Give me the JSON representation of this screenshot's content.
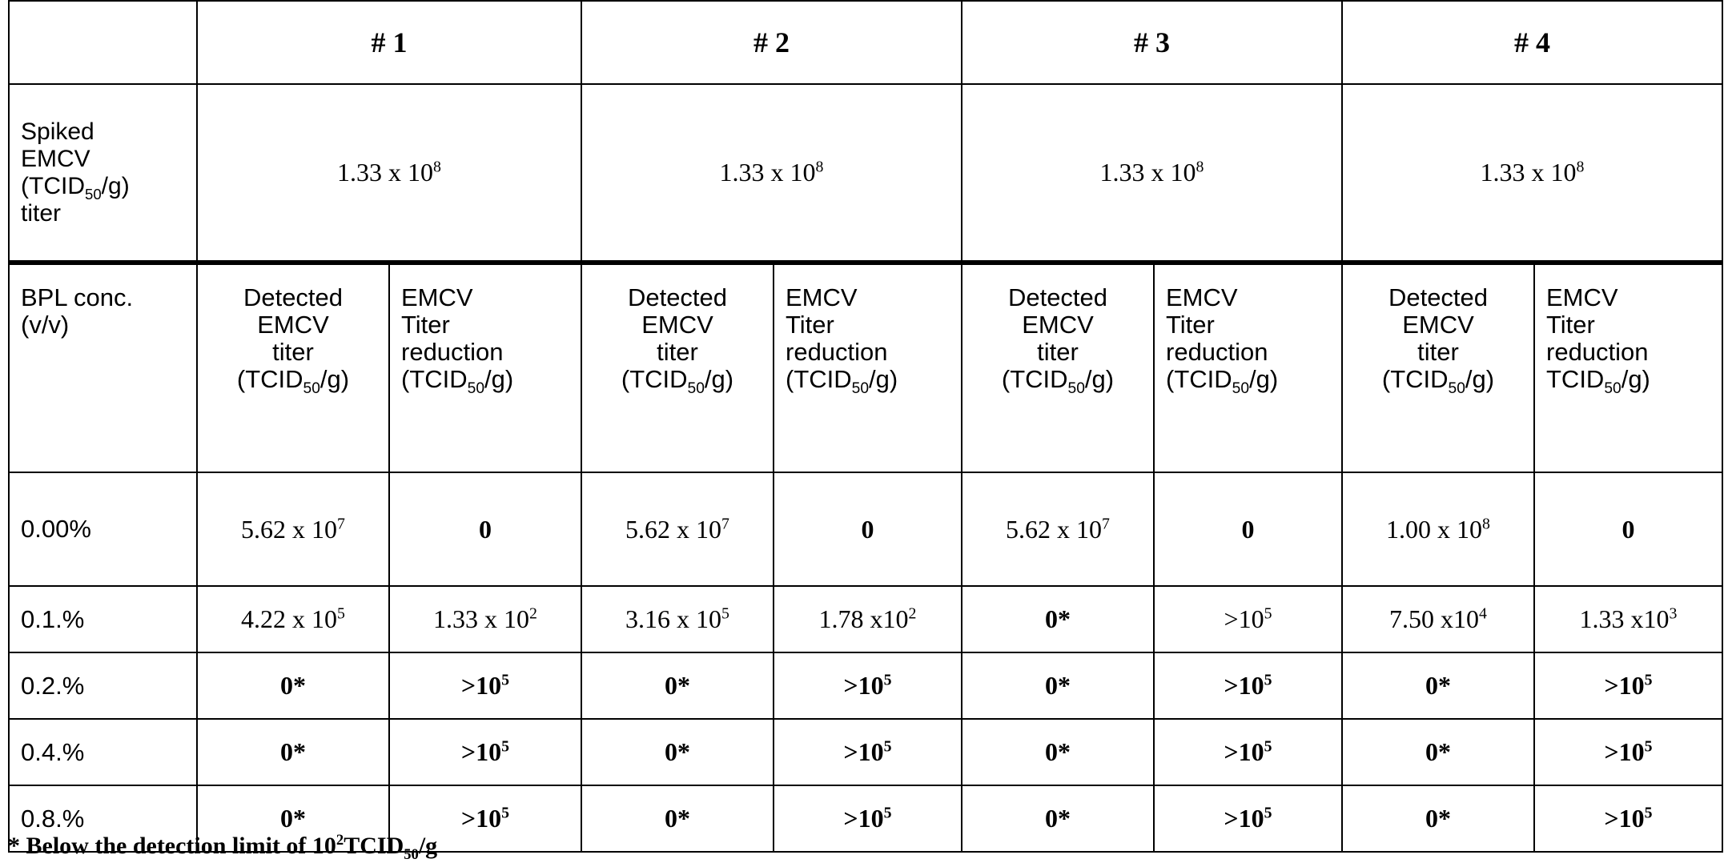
{
  "groups": [
    "# 1",
    "# 2",
    "# 3",
    "# 4"
  ],
  "spiked": {
    "label_lines": [
      "Spiked",
      "EMCV",
      "(TCID",
      "50",
      "/g)",
      "titer"
    ],
    "values": [
      {
        "base": "1.33 x 10",
        "exp": "8"
      },
      {
        "base": "1.33 x 10",
        "exp": "8"
      },
      {
        "base": "1.33 x 10",
        "exp": "8"
      },
      {
        "base": "1.33 x 10",
        "exp": "8"
      }
    ]
  },
  "bpl_header": {
    "label_line1": "BPL conc.",
    "label_line2": "(v/v)",
    "detected": {
      "l1": "Detected",
      "l2": "EMCV",
      "l3": "titer",
      "unit_a": "(TCID",
      "unit_sub": "50",
      "unit_b": "/g)"
    },
    "reduction": {
      "l1": "EMCV",
      "l2": "Titer",
      "l3": "reduction",
      "unit_a": "(TCID",
      "unit_sub": "50",
      "unit_b": "/g)"
    },
    "reduction_last": {
      "unit_a": "TCID",
      "unit_sub": "50",
      "unit_b": "/g)"
    }
  },
  "rows": [
    {
      "conc": "0.00%",
      "cells": [
        {
          "b": "5.62 x 10",
          "e": "7"
        },
        {
          "b": "0",
          "e": ""
        },
        {
          "b": "5.62 x 10",
          "e": "7"
        },
        {
          "b": "0",
          "e": ""
        },
        {
          "b": "5.62 x 10",
          "e": "7"
        },
        {
          "b": "0",
          "e": ""
        },
        {
          "b": "1.00 x 10",
          "e": "8"
        },
        {
          "b": "0",
          "e": ""
        }
      ]
    },
    {
      "conc": "0.1.%",
      "cells": [
        {
          "b": "4.22 x 10",
          "e": "5"
        },
        {
          "b": "1.33 x 10",
          "e": "2"
        },
        {
          "b": "3.16 x 10",
          "e": "5"
        },
        {
          "b": "1.78 x10",
          "e": "2"
        },
        {
          "b": "0*",
          "e": ""
        },
        {
          "b": ">10",
          "e": "5"
        },
        {
          "b": "7.50 x10",
          "e": "4"
        },
        {
          "b": "1.33 x10",
          "e": "3"
        }
      ]
    },
    {
      "conc": "0.2.%",
      "cells": [
        {
          "b": "0*",
          "e": ""
        },
        {
          "b": ">10",
          "e": "5"
        },
        {
          "b": "0*",
          "e": ""
        },
        {
          "b": ">10",
          "e": "5"
        },
        {
          "b": "0*",
          "e": ""
        },
        {
          "b": ">10",
          "e": "5"
        },
        {
          "b": "0*",
          "e": ""
        },
        {
          "b": ">10",
          "e": "5"
        }
      ]
    },
    {
      "conc": "0.4.%",
      "cells": [
        {
          "b": "0*",
          "e": ""
        },
        {
          "b": ">10",
          "e": "5"
        },
        {
          "b": "0*",
          "e": ""
        },
        {
          "b": ">10",
          "e": "5"
        },
        {
          "b": "0*",
          "e": ""
        },
        {
          "b": ">10",
          "e": "5"
        },
        {
          "b": "0*",
          "e": ""
        },
        {
          "b": ">10",
          "e": "5"
        }
      ]
    },
    {
      "conc": "0.8.%",
      "cells": [
        {
          "b": "0*",
          "e": ""
        },
        {
          "b": ">10",
          "e": "5"
        },
        {
          "b": "0*",
          "e": ""
        },
        {
          "b": ">10",
          "e": "5"
        },
        {
          "b": "0*",
          "e": ""
        },
        {
          "b": ">10",
          "e": "5"
        },
        {
          "b": "0*",
          "e": ""
        },
        {
          "b": ">10",
          "e": "5"
        }
      ]
    }
  ],
  "footnote": {
    "text_a": "* Below the detection limit of 10",
    "exp": "2",
    "text_b": "TCID",
    "sub": "50",
    "text_c": "/g"
  }
}
